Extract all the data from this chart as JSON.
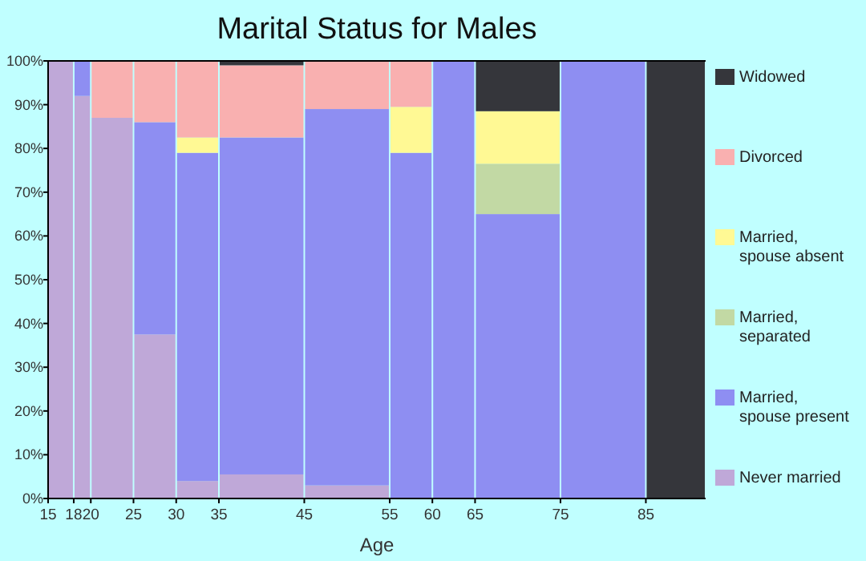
{
  "chart_data": {
    "type": "bar",
    "stacked": true,
    "title": "Marital Status for Males",
    "xlabel": "Age",
    "legend": "right",
    "x": [
      16.5,
      19,
      22.5,
      27.5,
      32.5,
      40,
      50,
      57.5,
      62.5,
      70,
      80,
      88.5
    ],
    "xlim": [
      15,
      92
    ],
    "xticks": [
      15,
      18,
      20,
      25,
      30,
      35,
      45,
      55,
      60,
      65,
      75,
      85
    ],
    "ylim": [
      0,
      100
    ],
    "yticks": [
      {
        "value": 0,
        "label": "0%"
      },
      {
        "value": 10,
        "label": "10%"
      },
      {
        "value": 20,
        "label": "20%"
      },
      {
        "value": 30,
        "label": "30%"
      },
      {
        "value": 40,
        "label": "40%"
      },
      {
        "value": 50,
        "label": "50%"
      },
      {
        "value": 60,
        "label": "60%"
      },
      {
        "value": 70,
        "label": "70%"
      },
      {
        "value": 80,
        "label": "80%"
      },
      {
        "value": 90,
        "label": "90%"
      },
      {
        "value": 100,
        "label": "100%"
      }
    ],
    "series": [
      {
        "name": "Never married",
        "color": "#bfa8d8",
        "values": [
          100,
          92,
          87,
          37.5,
          4,
          5.5,
          3,
          0,
          0,
          0,
          0,
          0
        ]
      },
      {
        "name": "Married, spouse present",
        "color": "#8e8ef2",
        "values": [
          0,
          8,
          0,
          48.5,
          75,
          77,
          86,
          79,
          100,
          65,
          100,
          0
        ]
      },
      {
        "name": "Married, separated",
        "color": "#c2d9a4",
        "values": [
          0,
          0,
          0,
          0,
          0,
          0,
          0,
          0,
          0,
          11.5,
          0,
          0
        ]
      },
      {
        "name": "Married, spouse absent",
        "color": "#fff994",
        "values": [
          0,
          0,
          0,
          0,
          3.5,
          0,
          0,
          10.5,
          0,
          12,
          0,
          0
        ]
      },
      {
        "name": "Divorced",
        "color": "#f9b0b0",
        "values": [
          0,
          0,
          13,
          14,
          17.5,
          16.5,
          11,
          10.5,
          0,
          0,
          0,
          0
        ]
      },
      {
        "name": "Widowed",
        "color": "#35363b",
        "values": [
          0,
          0,
          0,
          0,
          0,
          1,
          0,
          0,
          0,
          11.5,
          0,
          100
        ]
      }
    ]
  }
}
